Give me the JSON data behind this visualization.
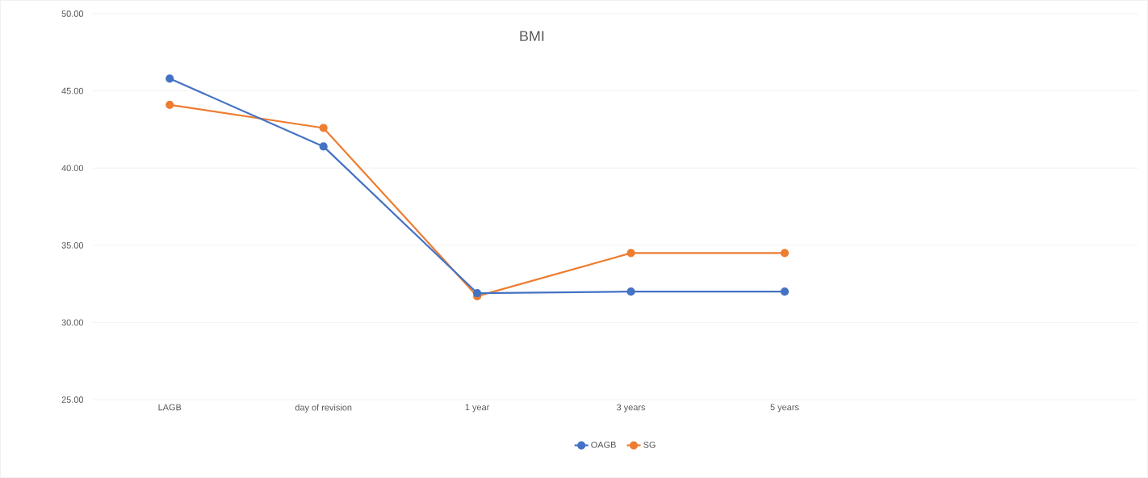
{
  "chart_data": {
    "type": "line",
    "title": "BMI",
    "categories": [
      "LAGB",
      "day of revision",
      "1 year",
      "3 years",
      "5 years"
    ],
    "series": [
      {
        "name": "OAGB",
        "color": "#4472c4",
        "values": [
          45.8,
          41.4,
          31.9,
          32.0,
          32.0
        ]
      },
      {
        "name": "SG",
        "color": "#ed7d31",
        "values": [
          44.1,
          42.6,
          31.7,
          34.5,
          34.5
        ]
      }
    ],
    "ylim": [
      25,
      50
    ],
    "yticks": [
      {
        "value": 25,
        "label": "25.00"
      },
      {
        "value": 30,
        "label": "30.00"
      },
      {
        "value": 35,
        "label": "35.00"
      },
      {
        "value": 40,
        "label": "40.00"
      },
      {
        "value": 45,
        "label": "45.00"
      },
      {
        "value": 50,
        "label": "50.00"
      }
    ],
    "grid": "y",
    "legend": "bottom",
    "marker": "circle",
    "line_style": "solid"
  }
}
